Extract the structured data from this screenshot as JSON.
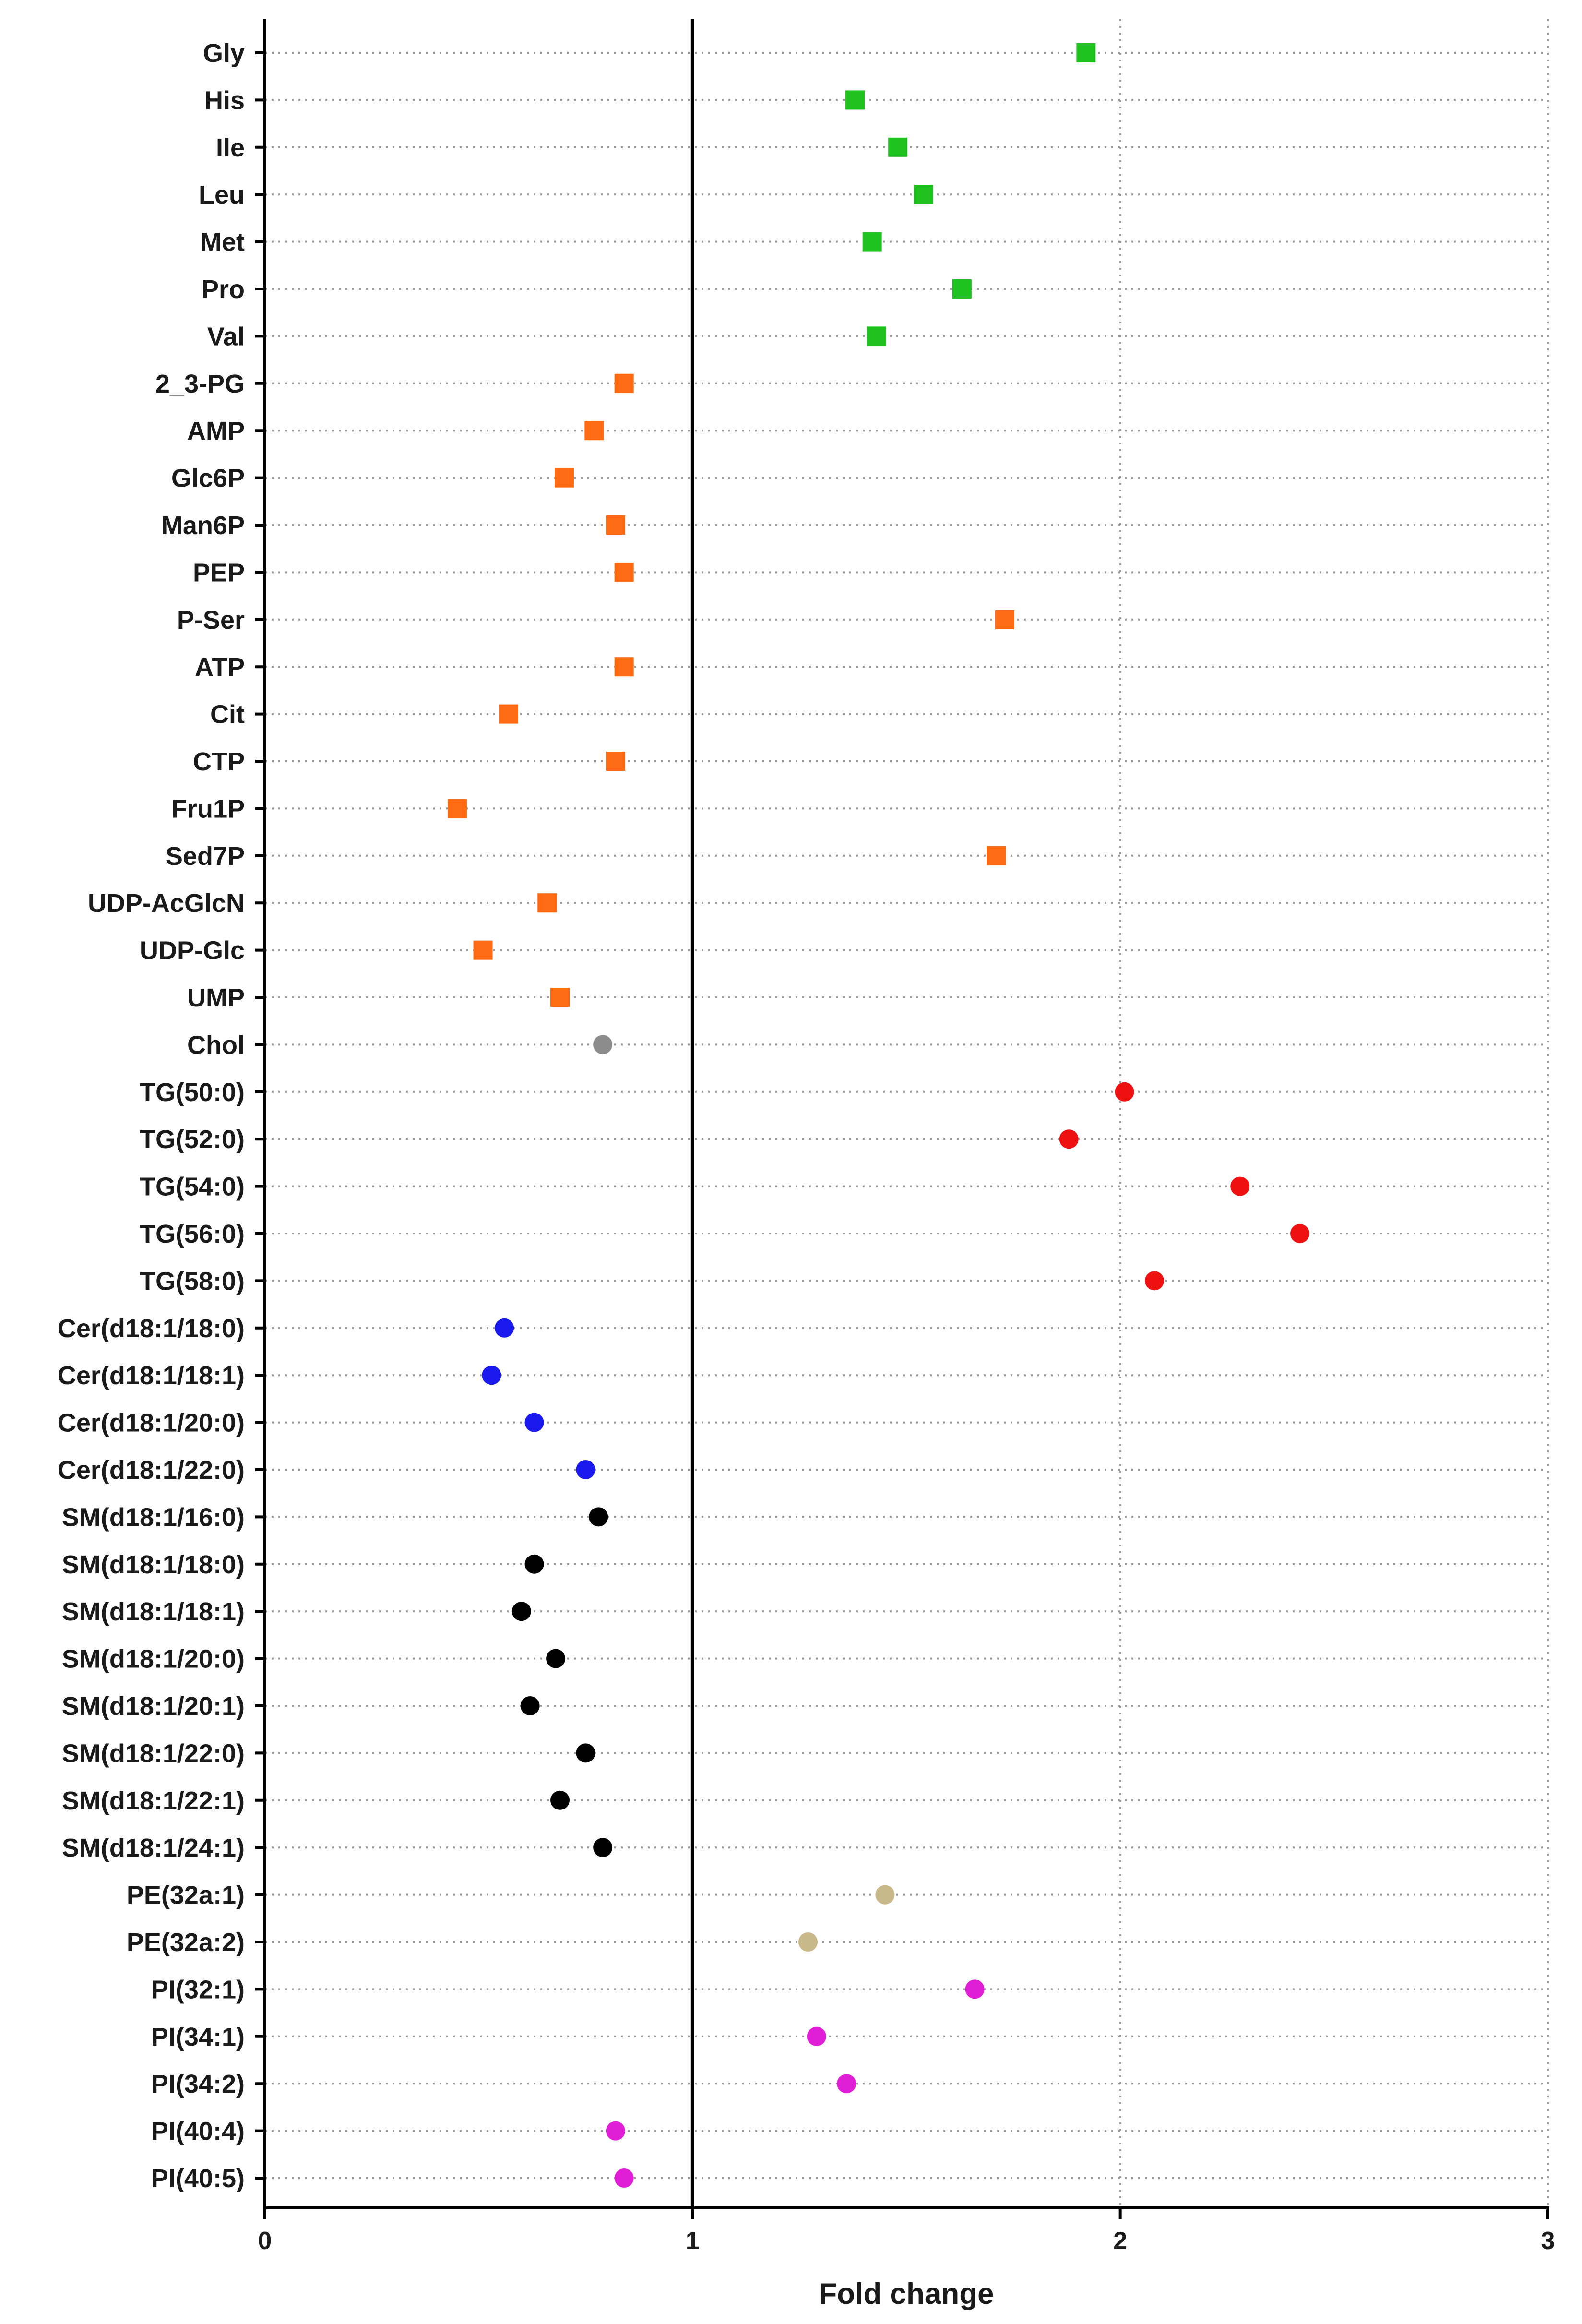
{
  "chart_data": {
    "type": "scatter",
    "orientation": "horizontal",
    "title": "",
    "xlabel": "Fold change",
    "ylabel": "",
    "xlim": [
      0,
      3
    ],
    "xticks": [
      0,
      1,
      2,
      3
    ],
    "reference_line": 1,
    "grid": true,
    "legend": "none",
    "colors": {
      "green": "#1fc11f",
      "orange": "#ff6a13",
      "gray": "#8c8c8c",
      "red": "#ee1111",
      "blue": "#1a1aee",
      "black": "#000000",
      "tan": "#c8b88a",
      "magenta": "#e01ed6"
    },
    "points": [
      {
        "label": "Gly",
        "value": 1.92,
        "color": "green",
        "marker": "square"
      },
      {
        "label": "His",
        "value": 1.38,
        "color": "green",
        "marker": "square"
      },
      {
        "label": "Ile",
        "value": 1.48,
        "color": "green",
        "marker": "square"
      },
      {
        "label": "Leu",
        "value": 1.54,
        "color": "green",
        "marker": "square"
      },
      {
        "label": "Met",
        "value": 1.42,
        "color": "green",
        "marker": "square"
      },
      {
        "label": "Pro",
        "value": 1.63,
        "color": "green",
        "marker": "square"
      },
      {
        "label": "Val",
        "value": 1.43,
        "color": "green",
        "marker": "square"
      },
      {
        "label": "2_3-PG",
        "value": 0.84,
        "color": "orange",
        "marker": "square"
      },
      {
        "label": "AMP",
        "value": 0.77,
        "color": "orange",
        "marker": "square"
      },
      {
        "label": "Glc6P",
        "value": 0.7,
        "color": "orange",
        "marker": "square"
      },
      {
        "label": "Man6P",
        "value": 0.82,
        "color": "orange",
        "marker": "square"
      },
      {
        "label": "PEP",
        "value": 0.84,
        "color": "orange",
        "marker": "square"
      },
      {
        "label": "P-Ser",
        "value": 1.73,
        "color": "orange",
        "marker": "square"
      },
      {
        "label": "ATP",
        "value": 0.84,
        "color": "orange",
        "marker": "square"
      },
      {
        "label": "Cit",
        "value": 0.57,
        "color": "orange",
        "marker": "square"
      },
      {
        "label": "CTP",
        "value": 0.82,
        "color": "orange",
        "marker": "square"
      },
      {
        "label": "Fru1P",
        "value": 0.45,
        "color": "orange",
        "marker": "square"
      },
      {
        "label": "Sed7P",
        "value": 1.71,
        "color": "orange",
        "marker": "square"
      },
      {
        "label": "UDP-AcGlcN",
        "value": 0.66,
        "color": "orange",
        "marker": "square"
      },
      {
        "label": "UDP-Glc",
        "value": 0.51,
        "color": "orange",
        "marker": "square"
      },
      {
        "label": "UMP",
        "value": 0.69,
        "color": "orange",
        "marker": "square"
      },
      {
        "label": "Chol",
        "value": 0.79,
        "color": "gray",
        "marker": "circle"
      },
      {
        "label": "TG(50:0)",
        "value": 2.01,
        "color": "red",
        "marker": "circle"
      },
      {
        "label": "TG(52:0)",
        "value": 1.88,
        "color": "red",
        "marker": "circle"
      },
      {
        "label": "TG(54:0)",
        "value": 2.28,
        "color": "red",
        "marker": "circle"
      },
      {
        "label": "TG(56:0)",
        "value": 2.42,
        "color": "red",
        "marker": "circle"
      },
      {
        "label": "TG(58:0)",
        "value": 2.08,
        "color": "red",
        "marker": "circle"
      },
      {
        "label": "Cer(d18:1/18:0)",
        "value": 0.56,
        "color": "blue",
        "marker": "circle"
      },
      {
        "label": "Cer(d18:1/18:1)",
        "value": 0.53,
        "color": "blue",
        "marker": "circle"
      },
      {
        "label": "Cer(d18:1/20:0)",
        "value": 0.63,
        "color": "blue",
        "marker": "circle"
      },
      {
        "label": "Cer(d18:1/22:0)",
        "value": 0.75,
        "color": "blue",
        "marker": "circle"
      },
      {
        "label": "SM(d18:1/16:0)",
        "value": 0.78,
        "color": "black",
        "marker": "circle"
      },
      {
        "label": "SM(d18:1/18:0)",
        "value": 0.63,
        "color": "black",
        "marker": "circle"
      },
      {
        "label": "SM(d18:1/18:1)",
        "value": 0.6,
        "color": "black",
        "marker": "circle"
      },
      {
        "label": "SM(d18:1/20:0)",
        "value": 0.68,
        "color": "black",
        "marker": "circle"
      },
      {
        "label": "SM(d18:1/20:1)",
        "value": 0.62,
        "color": "black",
        "marker": "circle"
      },
      {
        "label": "SM(d18:1/22:0)",
        "value": 0.75,
        "color": "black",
        "marker": "circle"
      },
      {
        "label": "SM(d18:1/22:1)",
        "value": 0.69,
        "color": "black",
        "marker": "circle"
      },
      {
        "label": "SM(d18:1/24:1)",
        "value": 0.79,
        "color": "black",
        "marker": "circle"
      },
      {
        "label": "PE(32a:1)",
        "value": 1.45,
        "color": "tan",
        "marker": "circle"
      },
      {
        "label": "PE(32a:2)",
        "value": 1.27,
        "color": "tan",
        "marker": "circle"
      },
      {
        "label": "PI(32:1)",
        "value": 1.66,
        "color": "magenta",
        "marker": "circle"
      },
      {
        "label": "PI(34:1)",
        "value": 1.29,
        "color": "magenta",
        "marker": "circle"
      },
      {
        "label": "PI(34:2)",
        "value": 1.36,
        "color": "magenta",
        "marker": "circle"
      },
      {
        "label": "PI(40:4)",
        "value": 0.82,
        "color": "magenta",
        "marker": "circle"
      },
      {
        "label": "PI(40:5)",
        "value": 0.84,
        "color": "magenta",
        "marker": "circle"
      }
    ]
  }
}
